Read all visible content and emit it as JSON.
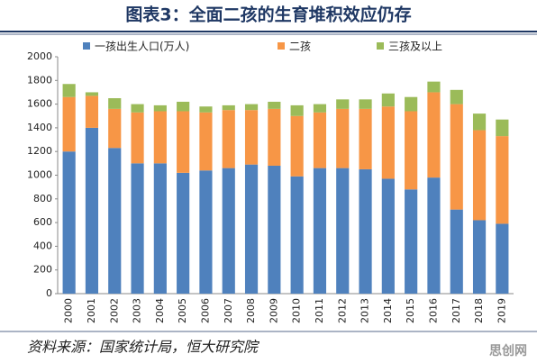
{
  "chart_data": {
    "type": "stacked_bar",
    "title": "图表3：全面二孩的生育堆积效应仍存",
    "categories": [
      "2000",
      "2001",
      "2002",
      "2003",
      "2004",
      "2005",
      "2006",
      "2007",
      "2008",
      "2009",
      "2010",
      "2011",
      "2012",
      "2013",
      "2014",
      "2015",
      "2016",
      "2017",
      "2018",
      "2019"
    ],
    "series": [
      {
        "name": "一孩出生人口(万人)",
        "color": "#4f81bd",
        "values": [
          1200,
          1400,
          1230,
          1100,
          1100,
          1020,
          1040,
          1060,
          1090,
          1080,
          990,
          1060,
          1060,
          1050,
          970,
          880,
          980,
          710,
          620,
          590
        ]
      },
      {
        "name": "二孩",
        "color": "#f79646",
        "values": [
          460,
          270,
          330,
          430,
          440,
          520,
          490,
          490,
          460,
          480,
          510,
          470,
          500,
          510,
          610,
          660,
          720,
          890,
          760,
          740
        ]
      },
      {
        "name": "三孩及以上",
        "color": "#9bbb59",
        "values": [
          110,
          30,
          90,
          70,
          50,
          80,
          50,
          40,
          50,
          60,
          90,
          70,
          80,
          80,
          110,
          120,
          90,
          120,
          140,
          140
        ]
      }
    ],
    "ylim": [
      0,
      2000
    ],
    "yticks": [
      0,
      200,
      400,
      600,
      800,
      1000,
      1200,
      1400,
      1600,
      1800,
      2000
    ],
    "legend": "top",
    "source": "资料来源：国家统计局，恒大研究院",
    "watermark": "思创网"
  }
}
